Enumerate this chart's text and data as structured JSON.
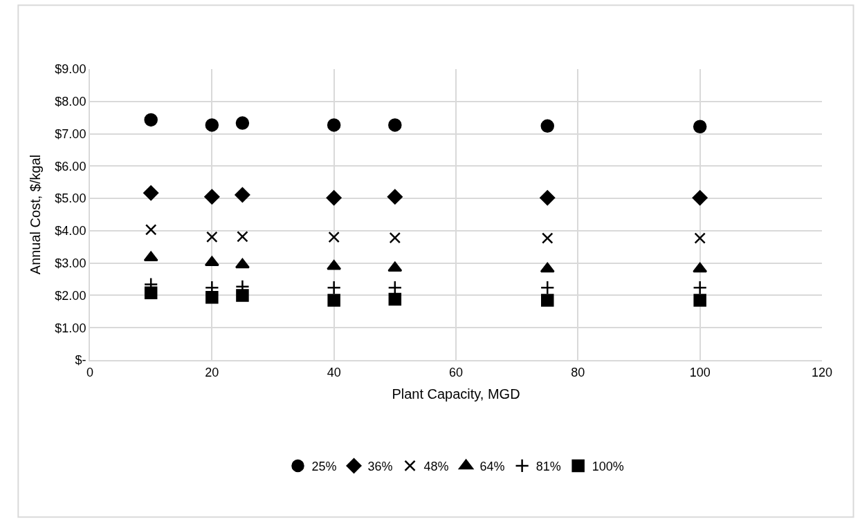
{
  "chart_data": {
    "type": "scatter",
    "xlabel": "Plant Capacity, MGD",
    "ylabel": "Annual Cost, $/kgal",
    "x": [
      10,
      20,
      25,
      40,
      50,
      75,
      100
    ],
    "series": [
      {
        "name": "25%",
        "color": "#000000",
        "marker": "circle",
        "values": [
          7.43,
          7.27,
          7.33,
          7.27,
          7.27,
          7.24,
          7.22
        ]
      },
      {
        "name": "36%",
        "color": "#000000",
        "marker": "diamond",
        "values": [
          5.17,
          5.05,
          5.11,
          5.02,
          5.05,
          5.02,
          5.02
        ]
      },
      {
        "name": "48%",
        "color": "#000000",
        "marker": "cross",
        "values": [
          4.03,
          3.81,
          3.82,
          3.8,
          3.78,
          3.77,
          3.77
        ]
      },
      {
        "name": "64%",
        "color": "#000000",
        "marker": "triangle",
        "values": [
          3.17,
          3.02,
          2.95,
          2.9,
          2.85,
          2.82,
          2.82
        ]
      },
      {
        "name": "81%",
        "color": "#000000",
        "marker": "plus",
        "values": [
          2.34,
          2.24,
          2.27,
          2.24,
          2.24,
          2.24,
          2.24
        ]
      },
      {
        "name": "100%",
        "color": "#000000",
        "marker": "square",
        "values": [
          2.08,
          1.94,
          2.0,
          1.85,
          1.88,
          1.85,
          1.85
        ]
      }
    ],
    "xlim": [
      0,
      120
    ],
    "xticks": [
      0,
      20,
      40,
      60,
      80,
      100,
      120
    ],
    "ylim": [
      0,
      9
    ],
    "yticks": [
      {
        "value": 0,
        "label": "$-"
      },
      {
        "value": 1,
        "label": "$1.00"
      },
      {
        "value": 2,
        "label": "$2.00"
      },
      {
        "value": 3,
        "label": "$3.00"
      },
      {
        "value": 4,
        "label": "$4.00"
      },
      {
        "value": 5,
        "label": "$5.00"
      },
      {
        "value": 6,
        "label": "$6.00"
      },
      {
        "value": 7,
        "label": "$7.00"
      },
      {
        "value": 8,
        "label": "$8.00"
      },
      {
        "value": 9,
        "label": "$9.00"
      }
    ],
    "grid": true,
    "legend": "bottom"
  }
}
